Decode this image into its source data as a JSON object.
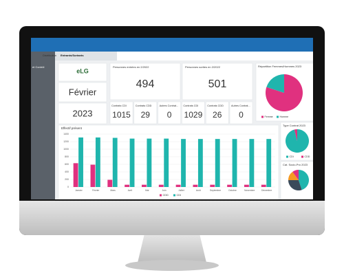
{
  "nav": {
    "tabs": [
      "Distribution",
      "Entrants/Sortants"
    ],
    "side": "et Contrôl"
  },
  "cards": {
    "logo": "eLG",
    "month": "Février",
    "year": "2023",
    "entries": {
      "label": "Personnes entrées en 2/2022",
      "value": 494
    },
    "exits": {
      "label": "Personnes sorties en 2/2022",
      "value": 501
    },
    "small": [
      {
        "label": "Contrats CDI",
        "value": 1015
      },
      {
        "label": "Contrats CDD",
        "value": 29
      },
      {
        "label": "Autres Contrat...",
        "value": 0
      },
      {
        "label": "Contrats CDI",
        "value": 1029
      },
      {
        "label": "Contrats CDD",
        "value": 26
      },
      {
        "label": "Autres Contrat...",
        "value": 0
      }
    ]
  },
  "charts": {
    "effectif": {
      "type": "bar",
      "title": "Effectif présent",
      "categories": [
        "Janvier",
        "Février",
        "Mars",
        "Avril",
        "Mai",
        "Juin",
        "Juillet",
        "Août",
        "Septembre",
        "Octobre",
        "Novembre",
        "Décembre"
      ],
      "series": [
        {
          "name": "CDD",
          "color": "#e0317f",
          "values": [
            630,
            590,
            190,
            60,
            60,
            60,
            60,
            60,
            60,
            60,
            60,
            60
          ]
        },
        {
          "name": "CDI",
          "color": "#1fb5ad",
          "values": [
            1310,
            1310,
            1300,
            1280,
            1280,
            1280,
            1270,
            1270,
            1270,
            1270,
            1270,
            1270
          ]
        }
      ],
      "ylim": [
        0,
        1400
      ],
      "yticks": [
        0,
        200,
        400,
        600,
        800,
        1000,
        1200,
        1400
      ]
    },
    "gender": {
      "type": "pie",
      "title": "Répartition Femmes/Hommes 2023",
      "categories": [
        "Femme",
        "Homme"
      ],
      "values": [
        80,
        20
      ],
      "colors": [
        "#e0317f",
        "#1fb5ad"
      ]
    },
    "contract": {
      "type": "pie",
      "title": "Type Contrat 2023",
      "categories": [
        "CDI",
        "CDD"
      ],
      "values": [
        96,
        4
      ],
      "colors": [
        "#1fb5ad",
        "#e0317f"
      ]
    },
    "socio": {
      "type": "pie",
      "title": "Cat. Socio-Pro 2023",
      "categories": [
        null,
        null,
        null,
        null
      ],
      "values": [
        45,
        30,
        15,
        10
      ],
      "colors": [
        "#1fb5ad",
        "#3a4a5a",
        "#f59a23",
        "#e0317f"
      ]
    }
  }
}
